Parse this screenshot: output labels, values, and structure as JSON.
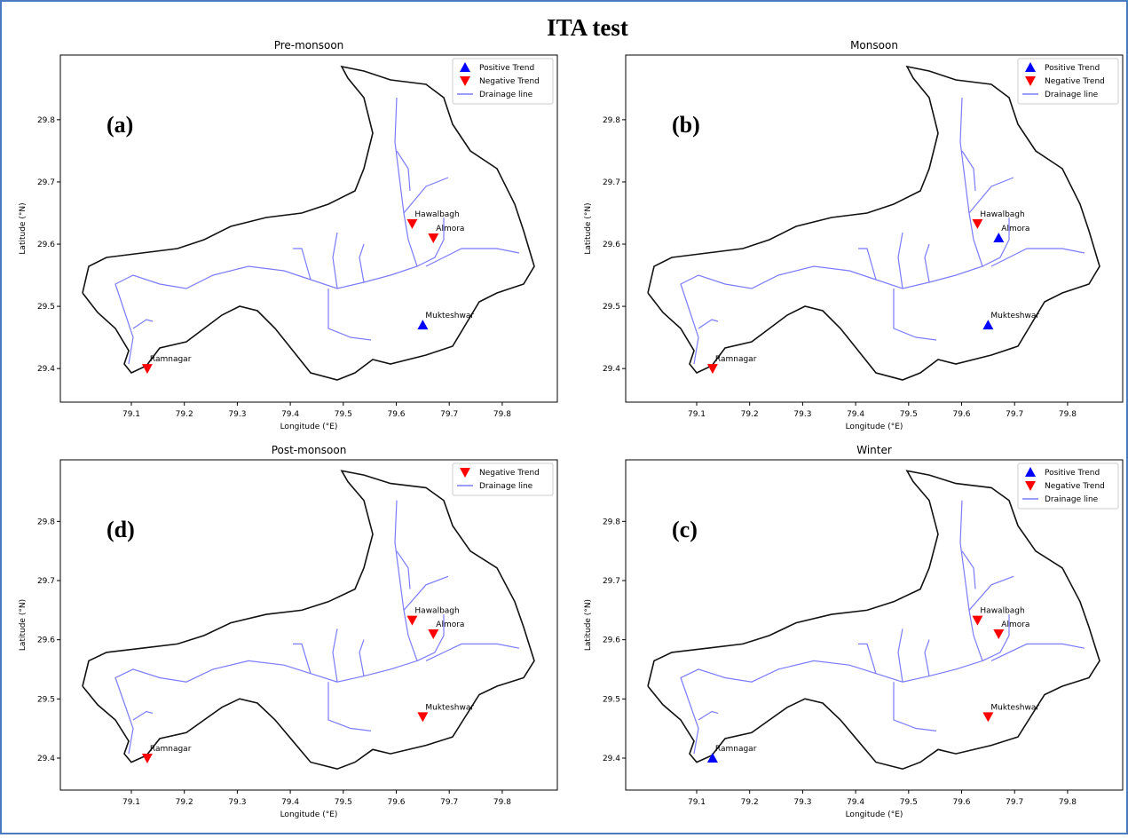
{
  "title": "ITA test",
  "chart_data": [
    {
      "type": "scatter",
      "title": "Pre-monsoon",
      "panel_label": "(a)",
      "x_label": "Longitude (°E)",
      "y_label": "Latitude (°N)",
      "xlim": [
        78.966,
        79.904
      ],
      "ylim": [
        29.346,
        29.904
      ],
      "xticks": [
        79.1,
        79.2,
        79.3,
        79.4,
        79.5,
        79.6,
        79.7,
        79.8
      ],
      "yticks": [
        29.4,
        29.5,
        29.6,
        29.7,
        29.8
      ],
      "legend": "upper right",
      "series": [
        {
          "name": "Positive Trend",
          "color": "#0000ff",
          "marker": "^",
          "x": [
            79.65
          ],
          "y": [
            29.47
          ],
          "labels": [
            "Mukteshwar"
          ]
        },
        {
          "name": "Negative Trend",
          "color": "#ff0000",
          "marker": "v",
          "x": [
            79.63,
            79.67,
            79.13
          ],
          "y": [
            29.633,
            29.61,
            29.4
          ],
          "labels": [
            "Hawalbagh",
            "Almora",
            "Ramnagar"
          ]
        }
      ],
      "lines": [
        {
          "name": "Drainage line",
          "color": "#7b7bff"
        }
      ]
    },
    {
      "type": "scatter",
      "title": "Monsoon",
      "panel_label": "(b)",
      "x_label": "Longitude (°E)",
      "y_label": "Latitude (°N)",
      "xlim": [
        78.966,
        79.904
      ],
      "ylim": [
        29.346,
        29.904
      ],
      "xticks": [
        79.1,
        79.2,
        79.3,
        79.4,
        79.5,
        79.6,
        79.7,
        79.8
      ],
      "yticks": [
        29.4,
        29.5,
        29.6,
        29.7,
        29.8
      ],
      "legend": "upper right",
      "series": [
        {
          "name": "Positive Trend",
          "color": "#0000ff",
          "marker": "^",
          "x": [
            79.67,
            79.65
          ],
          "y": [
            29.61,
            29.47
          ],
          "labels": [
            "Almora",
            "Mukteshwar"
          ]
        },
        {
          "name": "Negative Trend",
          "color": "#ff0000",
          "marker": "v",
          "x": [
            79.63,
            79.13
          ],
          "y": [
            29.633,
            29.4
          ],
          "labels": [
            "Hawalbagh",
            "Ramnagar"
          ]
        }
      ],
      "lines": [
        {
          "name": "Drainage line",
          "color": "#7b7bff"
        }
      ]
    },
    {
      "type": "scatter",
      "title": "Post-monsoon",
      "panel_label": "(d)",
      "x_label": "Longitude (°E)",
      "y_label": "Latitude (°N)",
      "xlim": [
        78.966,
        79.904
      ],
      "ylim": [
        29.346,
        29.904
      ],
      "xticks": [
        79.1,
        79.2,
        79.3,
        79.4,
        79.5,
        79.6,
        79.7,
        79.8
      ],
      "yticks": [
        29.4,
        29.5,
        29.6,
        29.7,
        29.8
      ],
      "legend": "upper right",
      "series": [
        {
          "name": "Negative Trend",
          "color": "#ff0000",
          "marker": "v",
          "x": [
            79.63,
            79.67,
            79.65,
            79.13
          ],
          "y": [
            29.633,
            29.61,
            29.47,
            29.4
          ],
          "labels": [
            "Hawalbagh",
            "Almora",
            "Mukteshwar",
            "Ramnagar"
          ]
        }
      ],
      "lines": [
        {
          "name": "Drainage line",
          "color": "#7b7bff"
        }
      ]
    },
    {
      "type": "scatter",
      "title": "Winter",
      "panel_label": "(c)",
      "x_label": "Longitude (°E)",
      "y_label": "Latitude (°N)",
      "xlim": [
        78.966,
        79.904
      ],
      "ylim": [
        29.346,
        29.904
      ],
      "xticks": [
        79.1,
        79.2,
        79.3,
        79.4,
        79.5,
        79.6,
        79.7,
        79.8
      ],
      "yticks": [
        29.4,
        29.5,
        29.6,
        29.7,
        29.8
      ],
      "legend": "upper right",
      "series": [
        {
          "name": "Positive Trend",
          "color": "#0000ff",
          "marker": "^",
          "x": [
            79.13
          ],
          "y": [
            29.4
          ],
          "labels": [
            "Ramnagar"
          ]
        },
        {
          "name": "Negative Trend",
          "color": "#ff0000",
          "marker": "v",
          "x": [
            79.63,
            79.67,
            79.65
          ],
          "y": [
            29.633,
            29.61,
            29.47
          ],
          "labels": [
            "Hawalbagh",
            "Almora",
            "Mukteshwar"
          ]
        }
      ],
      "lines": [
        {
          "name": "Drainage line",
          "color": "#7b7bff"
        }
      ]
    }
  ]
}
